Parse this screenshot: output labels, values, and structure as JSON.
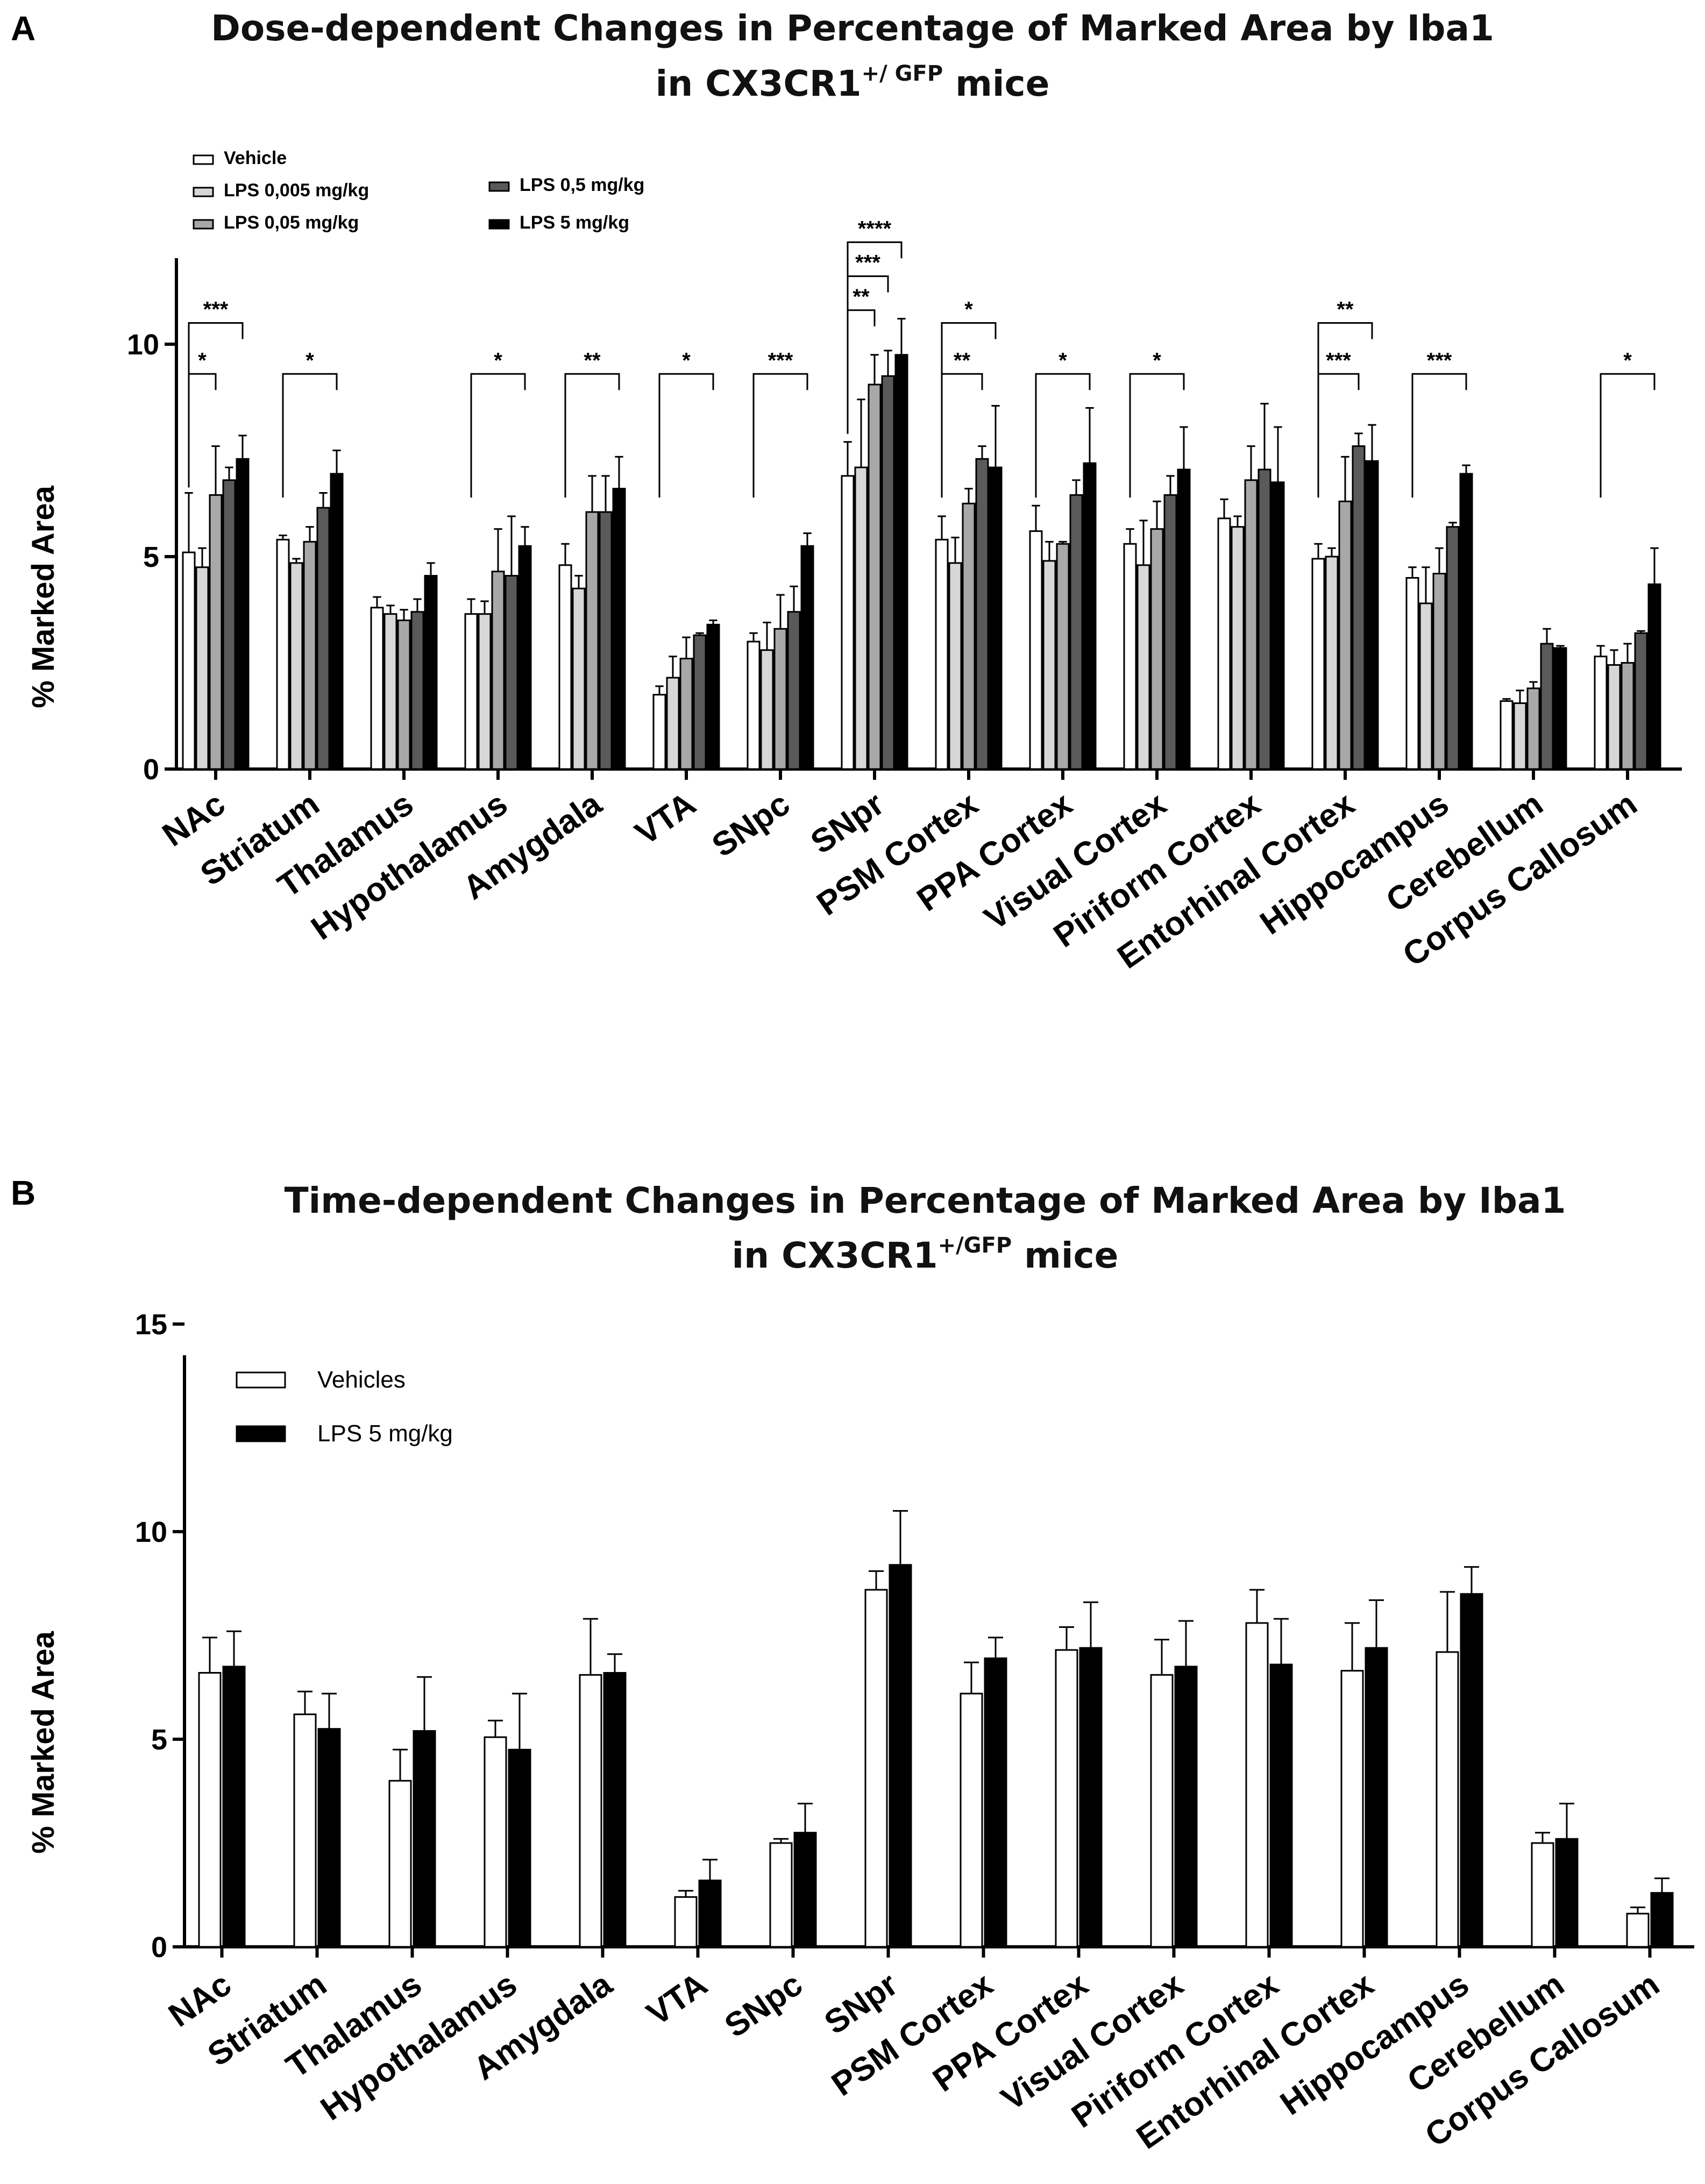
{
  "chart_data": [
    {
      "panel": "A",
      "type": "bar",
      "title": "Dose-dependent Changes in Percentage of Marked Area by Iba1",
      "title_line2": "in CX3CR1",
      "title_sup": "+/ GFP",
      "title_tail": " mice",
      "ylabel": "% Marked Area",
      "ylim": [
        0,
        12
      ],
      "yticks": [
        0,
        5,
        10
      ],
      "categories": [
        "NAc",
        "Striatum",
        "Thalamus",
        "Hypothalamus",
        "Amygdala",
        "VTA",
        "SNpc",
        "SNpr",
        "PSM Cortex",
        "PPA Cortex",
        "Visual Cortex",
        "Piriform Cortex",
        "Entorhinal Cortex",
        "Hippocampus",
        "Cerebellum",
        "Corpus Callosum"
      ],
      "series": [
        {
          "name": "Vehicle",
          "color": "#ffffff",
          "values": [
            5.1,
            5.4,
            3.8,
            3.65,
            4.8,
            1.75,
            3.0,
            6.9,
            5.4,
            5.6,
            5.3,
            5.9,
            4.95,
            4.5,
            1.6,
            2.65
          ],
          "errors": [
            1.4,
            0.1,
            0.25,
            0.35,
            0.5,
            0.2,
            0.2,
            0.8,
            0.55,
            0.6,
            0.35,
            0.45,
            0.35,
            0.25,
            0.05,
            0.25
          ]
        },
        {
          "name": "LPS 0,005 mg/kg",
          "color": "#d7d7d7",
          "values": [
            4.75,
            4.85,
            3.65,
            3.65,
            4.25,
            2.15,
            2.8,
            7.1,
            4.85,
            4.9,
            4.8,
            5.7,
            5.0,
            3.9,
            1.55,
            2.45
          ],
          "errors": [
            0.45,
            0.1,
            0.2,
            0.3,
            0.3,
            0.5,
            0.65,
            1.6,
            0.6,
            0.45,
            1.05,
            0.25,
            0.2,
            0.85,
            0.3,
            0.35
          ]
        },
        {
          "name": "LPS 0,05 mg/kg",
          "color": "#a8a8a8",
          "values": [
            6.45,
            5.35,
            3.5,
            4.65,
            6.05,
            2.6,
            3.3,
            9.05,
            6.25,
            5.3,
            5.65,
            6.8,
            6.3,
            4.6,
            1.9,
            2.5
          ],
          "errors": [
            1.15,
            0.35,
            0.25,
            1.0,
            0.85,
            0.5,
            0.8,
            0.7,
            0.35,
            0.05,
            0.65,
            0.8,
            1.05,
            0.6,
            0.15,
            0.45
          ]
        },
        {
          "name": "LPS 0,5 mg/kg",
          "color": "#5a5a5a",
          "values": [
            6.8,
            6.15,
            3.7,
            4.55,
            6.05,
            3.15,
            3.7,
            9.25,
            7.3,
            6.45,
            6.45,
            7.05,
            7.6,
            5.7,
            2.95,
            3.2
          ],
          "errors": [
            0.3,
            0.35,
            0.3,
            1.4,
            0.85,
            0.05,
            0.6,
            0.6,
            0.3,
            0.35,
            0.45,
            1.55,
            0.3,
            0.1,
            0.35,
            0.05
          ]
        },
        {
          "name": "LPS 5 mg/kg",
          "color": "#000000",
          "values": [
            7.3,
            6.95,
            4.55,
            5.25,
            6.6,
            3.4,
            5.25,
            9.75,
            7.1,
            7.2,
            7.05,
            6.75,
            7.25,
            6.95,
            2.85,
            4.35
          ],
          "errors": [
            0.55,
            0.55,
            0.3,
            0.45,
            0.75,
            0.1,
            0.3,
            0.85,
            1.45,
            1.3,
            1.0,
            1.3,
            0.85,
            0.2,
            0.05,
            0.85
          ]
        }
      ],
      "significance": [
        {
          "category": "NAc",
          "label": "***",
          "from": 0,
          "to": 4,
          "level": 10.5
        },
        {
          "category": "NAc",
          "label": "*",
          "from": 0,
          "to": 2,
          "level": 9.3
        },
        {
          "category": "Striatum",
          "label": "*",
          "from": 0,
          "to": 4,
          "level": 9.3
        },
        {
          "category": "Hypothalamus",
          "label": "*",
          "from": 0,
          "to": 4,
          "level": 9.3
        },
        {
          "category": "Amygdala",
          "label": "**",
          "from": 0,
          "to": 4,
          "level": 9.3
        },
        {
          "category": "VTA",
          "label": "*",
          "from": 0,
          "to": 4,
          "level": 9.3
        },
        {
          "category": "SNpc",
          "label": "***",
          "from": 0,
          "to": 4,
          "level": 9.3
        },
        {
          "category": "SNpr",
          "label": "****",
          "from": 0,
          "to": 4,
          "level": 12.4
        },
        {
          "category": "SNpr",
          "label": "***",
          "from": 0,
          "to": 3,
          "level": 11.6
        },
        {
          "category": "SNpr",
          "label": "**",
          "from": 0,
          "to": 2,
          "level": 10.8
        },
        {
          "category": "PSM Cortex",
          "label": "*",
          "from": 0,
          "to": 4,
          "level": 10.5
        },
        {
          "category": "PSM Cortex",
          "label": "**",
          "from": 0,
          "to": 3,
          "level": 9.3
        },
        {
          "category": "PPA Cortex",
          "label": "*",
          "from": 0,
          "to": 4,
          "level": 9.3
        },
        {
          "category": "Visual Cortex",
          "label": "*",
          "from": 0,
          "to": 4,
          "level": 9.3
        },
        {
          "category": "Entorhinal Cortex",
          "label": "**",
          "from": 0,
          "to": 4,
          "level": 10.5
        },
        {
          "category": "Entorhinal Cortex",
          "label": "***",
          "from": 0,
          "to": 3,
          "level": 9.3
        },
        {
          "category": "Hippocampus",
          "label": "***",
          "from": 0,
          "to": 4,
          "level": 9.3
        },
        {
          "category": "Corpus Callosum",
          "label": "*",
          "from": 0,
          "to": 4,
          "level": 9.3
        }
      ],
      "legend": "top-left"
    },
    {
      "panel": "B",
      "type": "bar",
      "title": "Time-dependent Changes in Percentage of Marked Area by Iba1",
      "title_line2": "in CX3CR1",
      "title_sup": "+/GFP",
      "title_tail": " mice",
      "ylabel": "% Marked Area",
      "ylim": [
        0,
        15
      ],
      "yticks": [
        0,
        5,
        10,
        15
      ],
      "categories": [
        "NAc",
        "Striatum",
        "Thalamus",
        "Hypothalamus",
        "Amygdala",
        "VTA",
        "SNpc",
        "SNpr",
        "PSM Cortex",
        "PPA Cortex",
        "Visual Cortex",
        "Piriform Cortex",
        "Entorhinal Cortex",
        "Hippocampus",
        "Cerebellum",
        "Corpus Callosum"
      ],
      "series": [
        {
          "name": "Vehicles",
          "color": "#ffffff",
          "values": [
            6.6,
            5.6,
            4.0,
            5.05,
            6.55,
            1.2,
            2.5,
            8.6,
            6.1,
            7.15,
            6.55,
            7.8,
            6.65,
            7.1,
            2.5,
            0.8
          ],
          "errors": [
            0.85,
            0.55,
            0.75,
            0.4,
            1.35,
            0.15,
            0.1,
            0.45,
            0.75,
            0.55,
            0.85,
            0.8,
            1.15,
            1.45,
            0.25,
            0.15
          ]
        },
        {
          "name": "LPS 5 mg/kg",
          "color": "#000000",
          "values": [
            6.75,
            5.25,
            5.2,
            4.75,
            6.6,
            1.6,
            2.75,
            9.2,
            6.95,
            7.2,
            6.75,
            6.8,
            7.2,
            8.5,
            2.6,
            1.3
          ],
          "errors": [
            0.85,
            0.85,
            1.3,
            1.35,
            0.45,
            0.5,
            0.7,
            1.3,
            0.5,
            1.1,
            1.1,
            1.1,
            1.15,
            0.65,
            0.85,
            0.35
          ]
        }
      ],
      "legend": "top-left"
    }
  ]
}
